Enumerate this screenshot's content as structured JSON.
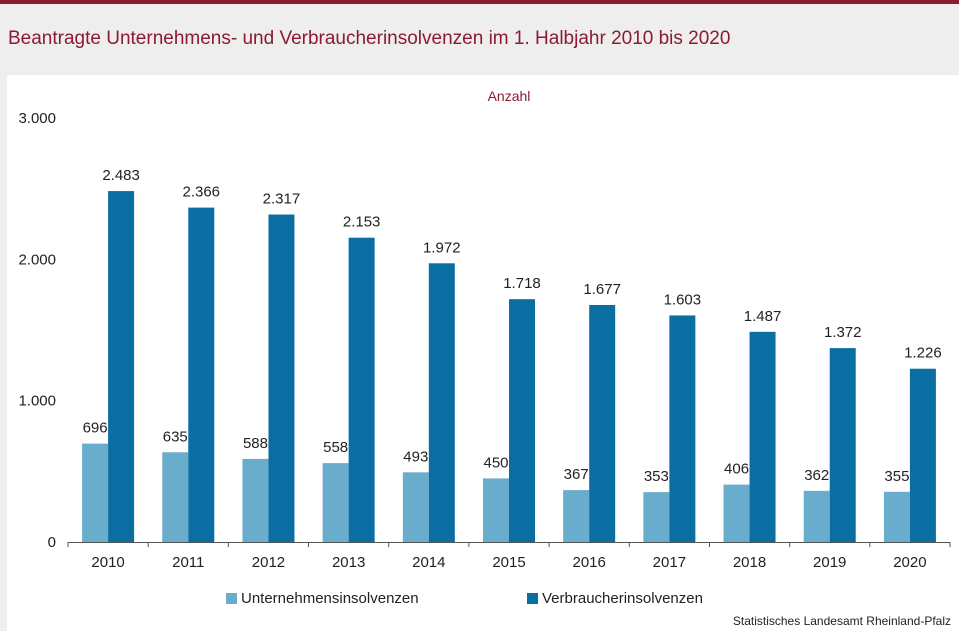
{
  "header": {
    "title": "Beantragte Unternehmens- und Verbraucherinsolvenzen im 1. Halbjahr 2010 bis 2020"
  },
  "source": "Statistisches Landesamt Rheinland-Pfalz",
  "colors": {
    "brand": "#8b1a32",
    "series_light": "#6aaccc",
    "series_dark": "#0a6ea3"
  },
  "chart_data": {
    "type": "bar",
    "title": "Beantragte Unternehmens- und Verbraucherinsolvenzen im 1. Halbjahr 2010 bis 2020",
    "ylabel": "Anzahl",
    "xlabel": "",
    "ylim": [
      0,
      3000
    ],
    "yticks": [
      "0",
      "1.000",
      "2.000",
      "3.000"
    ],
    "grid": false,
    "legend": "bottom",
    "categories": [
      "2010",
      "2011",
      "2012",
      "2013",
      "2014",
      "2015",
      "2016",
      "2017",
      "2018",
      "2019",
      "2020"
    ],
    "series": [
      {
        "name": "Unternehmensinsolvenzen",
        "values": [
          696,
          635,
          588,
          558,
          493,
          450,
          367,
          353,
          406,
          362,
          355
        ],
        "labels": [
          "696",
          "635",
          "588",
          "558",
          "493",
          "450",
          "367",
          "353",
          "406",
          "362",
          "355"
        ]
      },
      {
        "name": "Verbraucherinsolvenzen",
        "values": [
          2483,
          2366,
          2317,
          2153,
          1972,
          1718,
          1677,
          1603,
          1487,
          1372,
          1226
        ],
        "labels": [
          "2.483",
          "2.366",
          "2.317",
          "2.153",
          "1.972",
          "1.718",
          "1.677",
          "1.603",
          "1.487",
          "1.372",
          "1.226"
        ]
      }
    ]
  }
}
